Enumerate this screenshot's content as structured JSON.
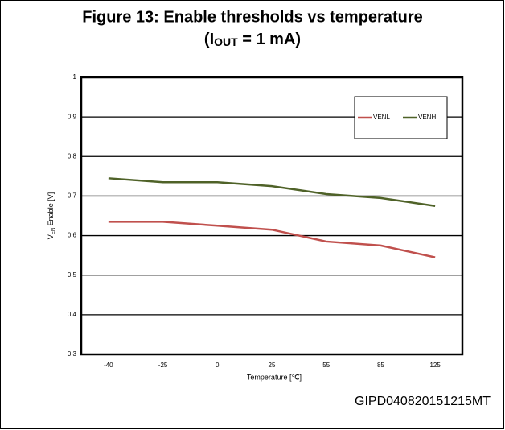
{
  "chart_data": {
    "type": "line",
    "title": "Figure 13: Enable thresholds vs temperature",
    "subtitle": {
      "prefix": "(I",
      "sub": "OUT",
      "suffix": " = 1 mA)"
    },
    "ylabel": {
      "prefix": "V",
      "sub": "EN",
      "suffix": " Enable  [V]"
    },
    "xlabel": "Temperature [℃]",
    "footer": "GIPD040820151215MT",
    "categories": [
      "-40",
      "-25",
      "0",
      "25",
      "55",
      "85",
      "125"
    ],
    "series": [
      {
        "name": "VENL",
        "color": "#c0504d",
        "values": [
          0.635,
          0.635,
          0.625,
          0.615,
          0.585,
          0.575,
          0.545
        ]
      },
      {
        "name": "VENH",
        "color": "#4f6228",
        "values": [
          0.745,
          0.735,
          0.735,
          0.725,
          0.705,
          0.695,
          0.675
        ]
      }
    ],
    "ylim": [
      0.3,
      1
    ],
    "yticks": [
      0.3,
      0.4,
      0.5,
      0.6,
      0.7,
      0.8,
      0.9,
      1
    ],
    "grid": true,
    "legend": "top-right"
  }
}
